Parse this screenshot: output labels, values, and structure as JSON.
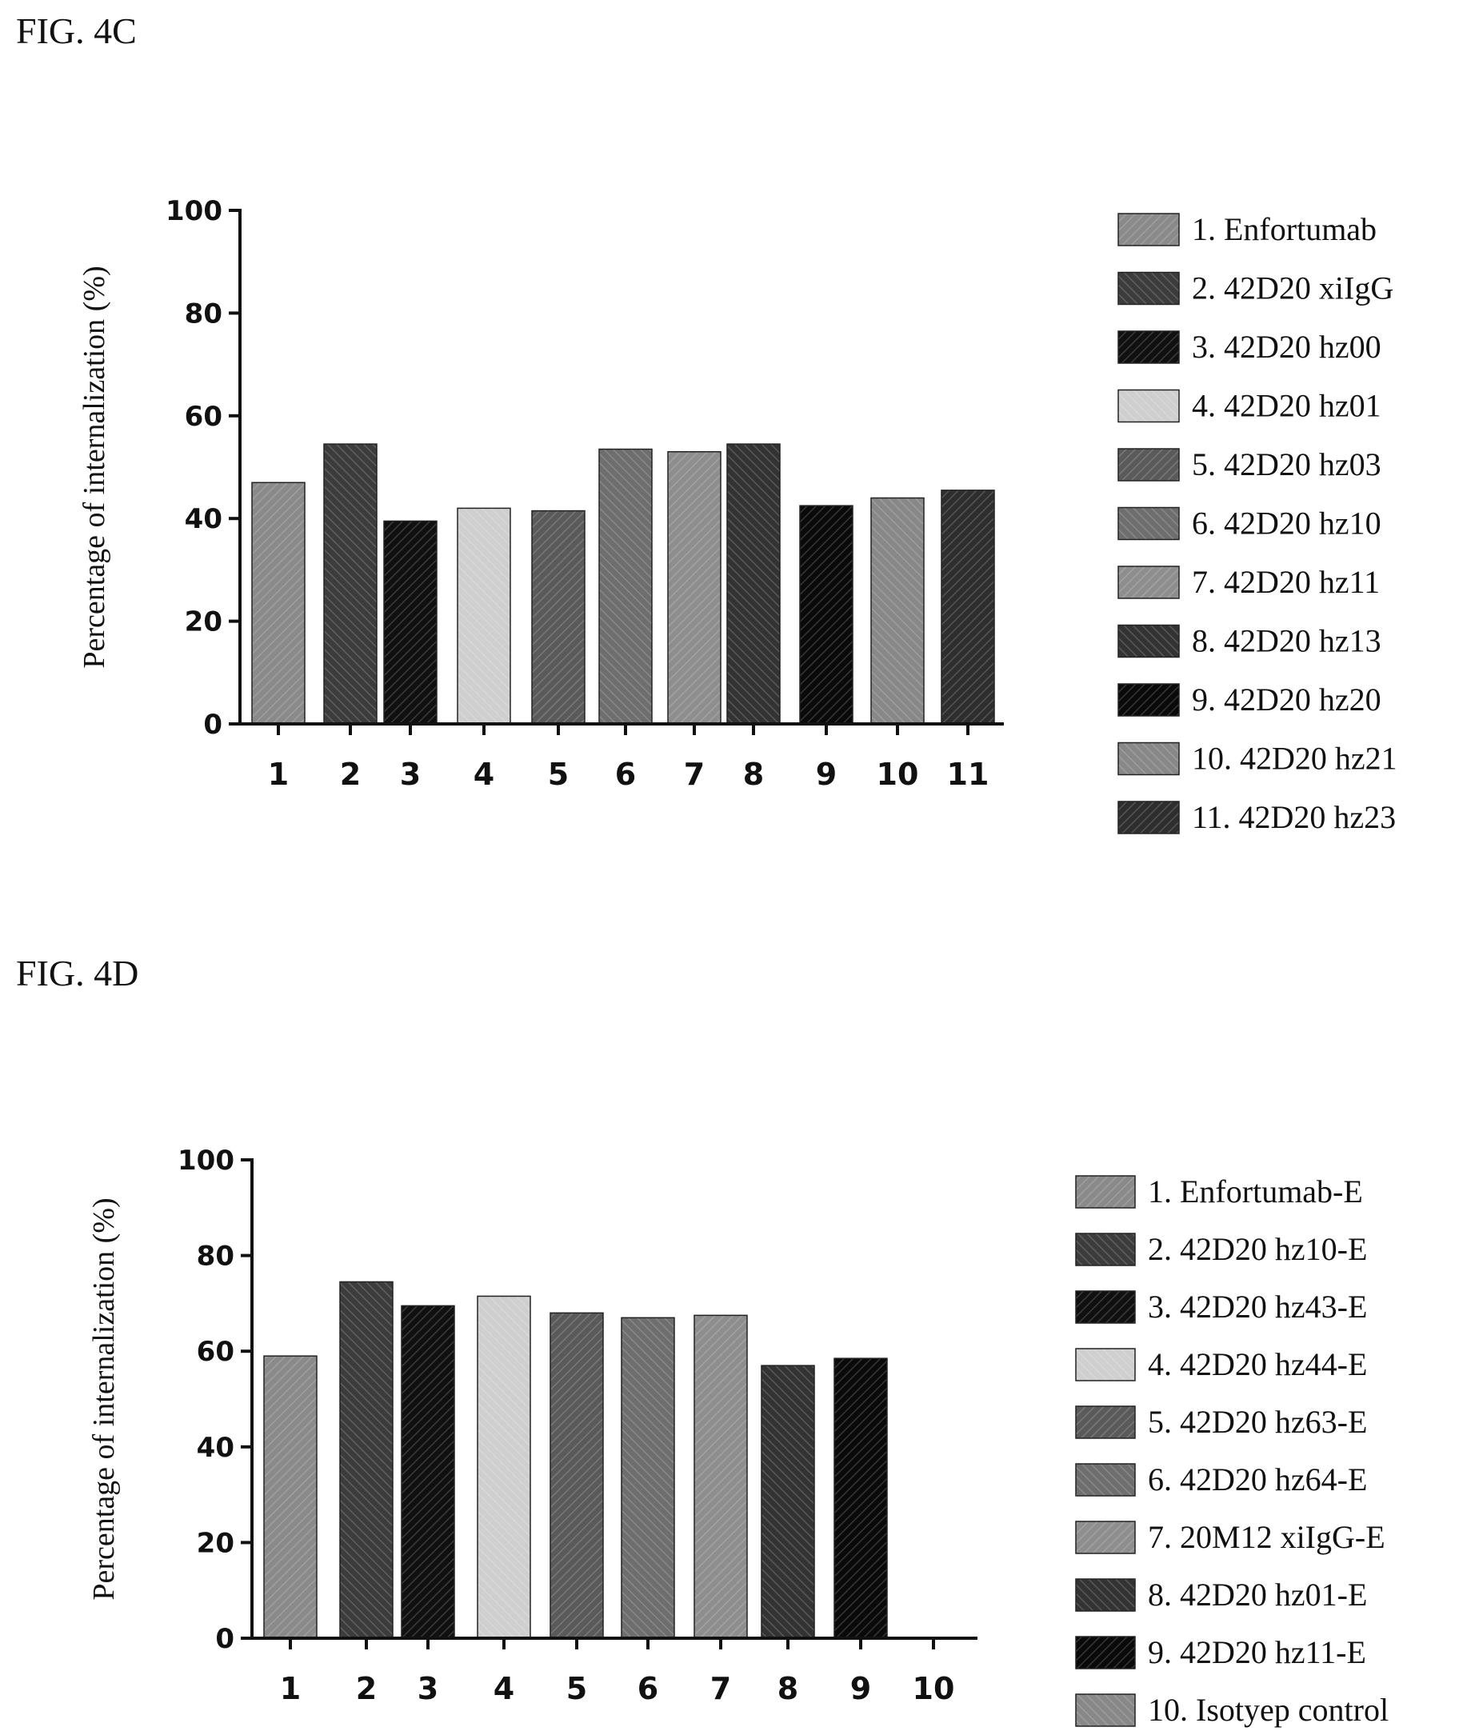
{
  "figures": {
    "c": {
      "label": "FIG. 4C"
    },
    "d": {
      "label": "FIG. 4D"
    }
  },
  "chart_data": [
    {
      "type": "bar",
      "title": "",
      "xlabel": "",
      "ylabel": "Percentage of internalization (%)",
      "ylim": [
        0,
        100
      ],
      "yticks": [
        0,
        20,
        40,
        60,
        80,
        100
      ],
      "categories": [
        "1",
        "2",
        "3",
        "4",
        "5",
        "6",
        "7",
        "8",
        "9",
        "10",
        "11"
      ],
      "values": [
        47,
        54.5,
        39.5,
        42,
        41.5,
        53.5,
        53,
        54.5,
        42.5,
        44,
        45.5
      ],
      "legend_position": "right",
      "legend": [
        "1. Enfortumab",
        "2. 42D20 xiIgG",
        "3. 42D20 hz00",
        "4. 42D20 hz01",
        "5. 42D20 hz03",
        "6. 42D20 hz10",
        "7. 42D20 hz11",
        "8. 42D20 hz13",
        "9. 42D20 hz20",
        "10. 42D20 hz21",
        "11. 42D20 hz23"
      ],
      "colors": [
        "#8a8a8a",
        "#3c3c3c",
        "#101010",
        "#cfcfcf",
        "#5a5a5a",
        "#6e6e6e",
        "#8e8e8e",
        "#333333",
        "#0a0a0a",
        "#888888",
        "#2e2e2e"
      ],
      "grid": false
    },
    {
      "type": "bar",
      "title": "",
      "xlabel": "",
      "ylabel": "Percentage of internalization (%)",
      "ylim": [
        0,
        100
      ],
      "yticks": [
        0,
        20,
        40,
        60,
        80,
        100
      ],
      "categories": [
        "1",
        "2",
        "3",
        "4",
        "5",
        "6",
        "7",
        "8",
        "9",
        "10"
      ],
      "values": [
        59,
        74.5,
        69.5,
        71.5,
        68,
        67,
        67.5,
        57,
        58.5,
        0
      ],
      "legend_position": "right",
      "legend": [
        "1. Enfortumab-E",
        "2. 42D20 hz10-E",
        "3. 42D20 hz43-E",
        "4. 42D20 hz44-E",
        "5. 42D20 hz63-E",
        "6. 42D20 hz64-E",
        "7. 20M12 xiIgG-E",
        "8. 42D20 hz01-E",
        "9. 42D20 hz11-E",
        "10. Isotyep control"
      ],
      "colors": [
        "#8a8a8a",
        "#3c3c3c",
        "#101010",
        "#cfcfcf",
        "#5a5a5a",
        "#6e6e6e",
        "#8e8e8e",
        "#333333",
        "#0a0a0a",
        "#888888"
      ],
      "grid": false
    }
  ]
}
